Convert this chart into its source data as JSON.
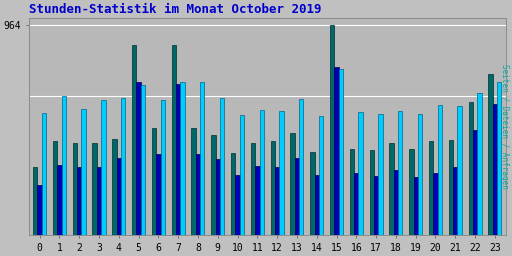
{
  "title": "Stunden-Statistik im Monat October 2019",
  "ylabel_right": "Seiten / Dateien / Anfragen",
  "ytick": 964,
  "background_color": "#c0c0c0",
  "plot_bg": "#b8b8b8",
  "bar_width": 0.22,
  "hours": [
    0,
    1,
    2,
    3,
    4,
    5,
    6,
    7,
    8,
    9,
    10,
    11,
    12,
    13,
    14,
    15,
    16,
    17,
    18,
    19,
    20,
    21,
    22,
    23
  ],
  "green_values": [
    310,
    430,
    420,
    420,
    440,
    870,
    490,
    870,
    490,
    460,
    375,
    420,
    430,
    470,
    380,
    964,
    395,
    390,
    420,
    395,
    430,
    435,
    610,
    740
  ],
  "blue_values": [
    230,
    320,
    310,
    310,
    355,
    700,
    370,
    695,
    370,
    350,
    275,
    315,
    310,
    355,
    275,
    770,
    285,
    270,
    300,
    265,
    285,
    310,
    480,
    600
  ],
  "cyan_values": [
    560,
    640,
    580,
    620,
    630,
    690,
    620,
    700,
    700,
    630,
    550,
    575,
    570,
    625,
    545,
    760,
    565,
    555,
    570,
    555,
    595,
    590,
    650,
    700
  ],
  "green_color": "#006868",
  "blue_color": "#0000bb",
  "cyan_color": "#00ccff",
  "title_color": "#0000cc",
  "title_fontsize": 9,
  "font_family": "monospace",
  "hline1": 964,
  "hline2": 640
}
